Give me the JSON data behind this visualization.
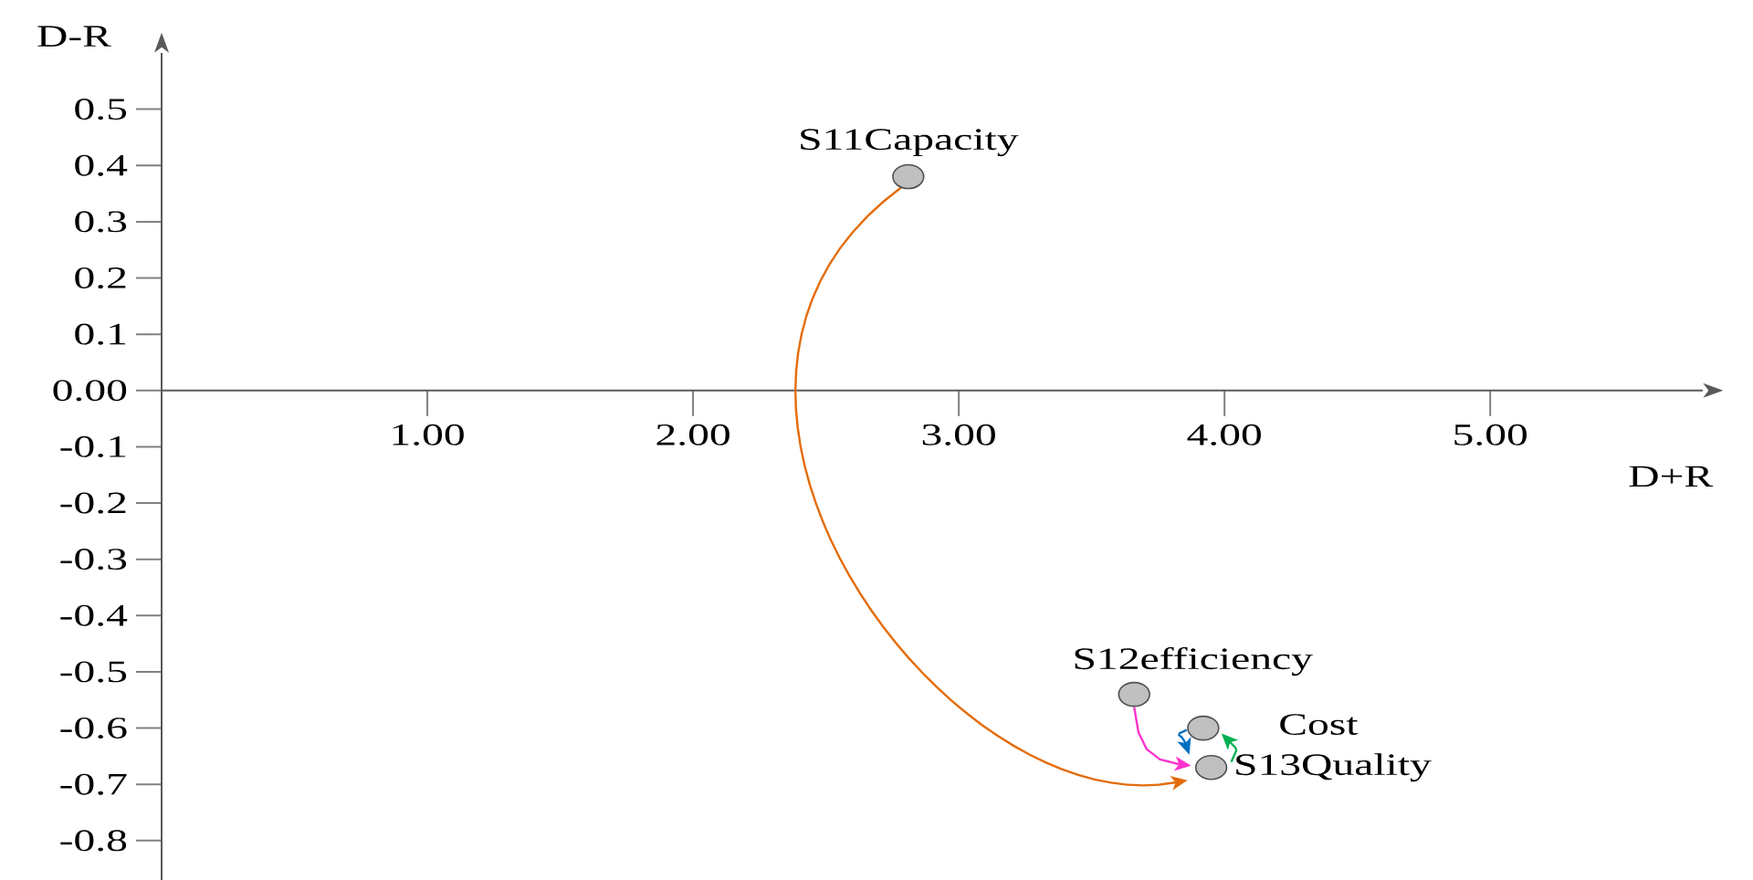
{
  "chart_data": {
    "type": "scatter",
    "xlabel": "D+R",
    "ylabel": "D-R",
    "xlim": [
      0,
      5.8
    ],
    "ylim": [
      -0.87,
      0.6
    ],
    "xticks": [
      {
        "value": 1,
        "label": "1.00"
      },
      {
        "value": 2,
        "label": "2.00"
      },
      {
        "value": 3,
        "label": "3.00"
      },
      {
        "value": 4,
        "label": "4.00"
      },
      {
        "value": 5,
        "label": "5.00"
      }
    ],
    "yticks": [
      0.5,
      0.4,
      0.3,
      0.2,
      0.1,
      {
        "value": 0,
        "label": "0.00"
      },
      -0.1,
      -0.2,
      -0.3,
      -0.4,
      -0.5,
      -0.6,
      -0.7,
      -0.8
    ],
    "marker": "circle",
    "color": "#c0c0c0",
    "x": [
      2.81,
      3.66,
      3.92,
      3.95
    ],
    "values": [
      0.38,
      -0.54,
      -0.6,
      -0.67
    ],
    "annotations": [
      {
        "text": "S11Capacity",
        "x": 2.81,
        "y": 0.38
      },
      {
        "text": "S12efficiency",
        "x": 3.66,
        "y": -0.54
      },
      {
        "text": "Cost",
        "x": 3.92,
        "y": -0.6
      },
      {
        "text": "S13Quality",
        "x": 3.95,
        "y": -0.67
      }
    ]
  }
}
